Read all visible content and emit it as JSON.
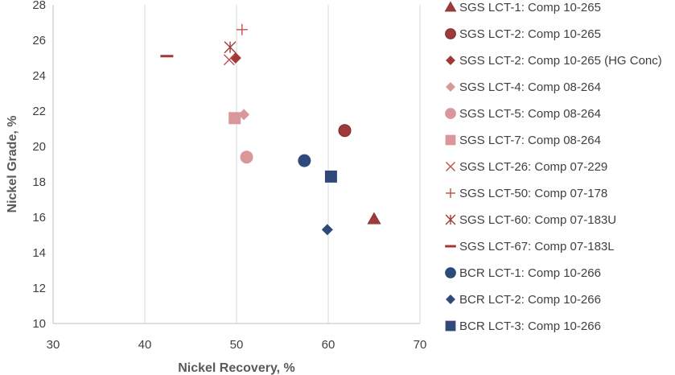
{
  "chart_data": {
    "type": "scatter",
    "title": "",
    "xlabel": "Nickel Recovery, %",
    "ylabel": "Nickel Grade, %",
    "xlim": [
      30,
      70
    ],
    "ylim": [
      10,
      28
    ],
    "x_ticks": [
      30,
      40,
      50,
      60,
      70
    ],
    "y_ticks": [
      10,
      12,
      14,
      16,
      18,
      20,
      22,
      24,
      26,
      28
    ],
    "grid": "vertical major gridlines",
    "legend_position": "right",
    "series": [
      {
        "name": "SGS LCT-1: Comp 10-265",
        "marker": "triangle",
        "color": "#A03A3A",
        "points": [
          [
            65.0,
            15.9
          ]
        ]
      },
      {
        "name": "SGS LCT-2: Comp 10-265",
        "marker": "circle",
        "color": "#A03A3A",
        "points": [
          [
            61.8,
            20.9
          ]
        ]
      },
      {
        "name": "SGS LCT-2: Comp 10-265 (HG Conc)",
        "marker": "diamond",
        "color": "#A03A3A",
        "points": [
          [
            49.9,
            25.0
          ]
        ]
      },
      {
        "name": "SGS LCT-4: Comp 08-264",
        "marker": "diamond",
        "color": "#D9979A",
        "points": [
          [
            50.8,
            21.8
          ]
        ]
      },
      {
        "name": "SGS LCT-5: Comp 08-264",
        "marker": "circle",
        "color": "#D9979A",
        "points": [
          [
            51.1,
            19.4
          ]
        ]
      },
      {
        "name": "SGS LCT-7: Comp 08-264",
        "marker": "square",
        "color": "#D9979A",
        "points": [
          [
            49.8,
            21.6
          ]
        ]
      },
      {
        "name": "SGS LCT-26: Comp 07-229",
        "marker": "x",
        "color": "#C0504D",
        "points": [
          [
            49.2,
            24.9
          ]
        ]
      },
      {
        "name": "SGS LCT-50: Comp 07-178",
        "marker": "plus",
        "color": "#C0504D",
        "points": [
          [
            50.6,
            26.6
          ]
        ]
      },
      {
        "name": "SGS LCT-60: Comp 07-183U",
        "marker": "star",
        "color": "#A03A3A",
        "points": [
          [
            49.3,
            25.6
          ]
        ]
      },
      {
        "name": "SGS LCT-67: Comp 07-183L",
        "marker": "dash",
        "color": "#A03A3A",
        "points": [
          [
            42.4,
            25.1
          ]
        ]
      },
      {
        "name": "BCR LCT-1: Comp 10-266",
        "marker": "circle",
        "color": "#2F4A7A",
        "points": [
          [
            57.4,
            19.2
          ]
        ]
      },
      {
        "name": "BCR LCT-2: Comp 10-266",
        "marker": "diamond",
        "color": "#2F4A7A",
        "points": [
          [
            59.9,
            15.3
          ]
        ]
      },
      {
        "name": "BCR LCT-3: Comp 10-266",
        "marker": "square",
        "color": "#2F4A7A",
        "points": [
          [
            60.3,
            18.3
          ]
        ]
      }
    ]
  }
}
